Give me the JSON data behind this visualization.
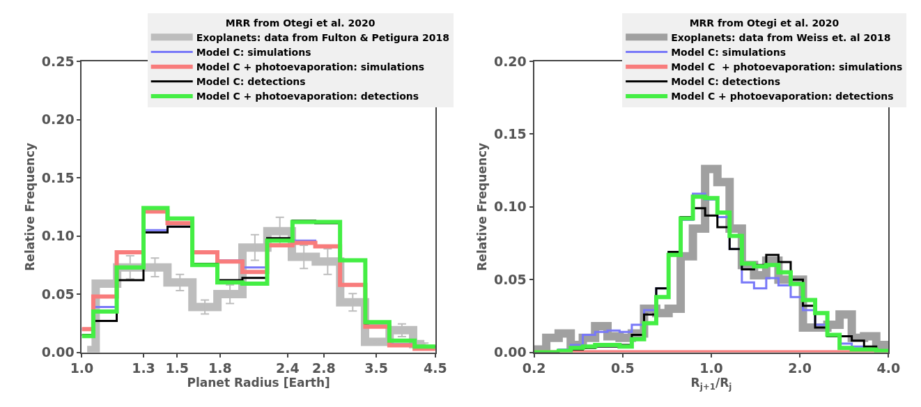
{
  "chart_data": [
    {
      "type": "histogram",
      "xlabel": "Planet Radius [Earth]",
      "ylabel": "Relative Frequency",
      "log": "x",
      "grid": false,
      "legend": "top right",
      "legend_title": "MRR from Otegi et al. 2020",
      "xlim": [
        1.0,
        4.5
      ],
      "xticks": [
        {
          "value": 1.0,
          "label": "1.0"
        },
        1.3,
        1.5,
        1.8,
        2.4,
        2.8,
        3.5,
        4.5
      ],
      "ylim": [
        0,
        0.25
      ],
      "yticks": [
        {
          "value": 0,
          "label": "0.00"
        },
        0.05,
        {
          "value": 0.1,
          "label": "0.10"
        },
        0.15,
        {
          "value": 0.2,
          "label": "0.20"
        },
        0.25
      ],
      "bins": [
        1.0,
        1.05,
        1.16,
        1.3,
        1.44,
        1.6,
        1.78,
        1.98,
        2.2,
        2.45,
        2.7,
        3.0,
        3.34,
        3.7,
        4.12,
        4.5
      ],
      "series": [
        {
          "name": "Exoplanets: data from Fulton & Petigura 2018",
          "type": "step",
          "marker": "circle",
          "color": "#bdbdbd",
          "x": [
            1.023,
            1.1,
            1.228,
            1.365,
            1.518,
            1.688,
            1.878,
            2.088,
            2.322,
            2.572,
            2.846,
            3.166,
            3.515,
            3.903,
            4.294
          ],
          "values": [
            0.002,
            0.059,
            0.073,
            0.073,
            0.06,
            0.039,
            0.05,
            0.09,
            0.104,
            0.082,
            0.078,
            0.043,
            0.009,
            0.019,
            0.007
          ],
          "errors": [
            null,
            null,
            0.01,
            0.008,
            0.007,
            0.006,
            0.008,
            0.011,
            0.012,
            0.01,
            0.011,
            0.0075,
            0.002,
            0.0055,
            0.001
          ]
        },
        {
          "name": "Model C: simulations",
          "color": "#7878f8",
          "values": [
            0.02,
            0.039,
            0.073,
            0.105,
            0.108,
            0.086,
            0.079,
            0.073,
            0.096,
            0.096,
            0.091,
            0.058,
            0.022,
            0.007,
            0.003
          ]
        },
        {
          "name": "Model C + photoevaporation: simulations",
          "color": "#f87c7c",
          "values": [
            0.02,
            0.048,
            0.086,
            0.121,
            0.111,
            0.086,
            0.078,
            0.069,
            0.092,
            0.094,
            0.091,
            0.058,
            0.022,
            0.006,
            0.003
          ]
        },
        {
          "name": "Model C: detections",
          "color": "#000000",
          "values": [
            0.015,
            0.027,
            0.062,
            0.103,
            0.108,
            0.076,
            0.062,
            0.064,
            0.098,
            0.113,
            0.111,
            0.079,
            0.025,
            0.01,
            0.005
          ]
        },
        {
          "name": "Model C + photoevaporation: detections",
          "color": "#44ee44",
          "values": [
            0.014,
            0.035,
            0.073,
            0.124,
            0.115,
            0.075,
            0.06,
            0.059,
            0.096,
            0.112,
            0.112,
            0.079,
            0.026,
            0.01,
            0.005
          ]
        }
      ]
    },
    {
      "type": "histogram",
      "xlabel": "R$_{j+1}$/R$_{j}$",
      "ylabel": "Relative Frequency",
      "log": "x",
      "grid": false,
      "legend": "top right",
      "legend_title": "MRR from Otegi et al. 2020",
      "xlim": [
        0.25,
        4.0
      ],
      "xticks": [
        {
          "value": 0.25,
          "label": "0.2"
        },
        0.5,
        {
          "value": 1.0,
          "label": "1.0"
        },
        {
          "value": 2.0,
          "label": "2.0"
        },
        {
          "value": 4.0,
          "label": "4.0"
        }
      ],
      "ylim": [
        0,
        0.2
      ],
      "yticks": [
        {
          "value": 0,
          "label": "0.00"
        },
        0.05,
        {
          "value": 0.1,
          "label": "0.10"
        },
        0.15,
        {
          "value": 0.2,
          "label": "0.20"
        }
      ],
      "bins": [
        0.25,
        0.275,
        0.303,
        0.333,
        0.366,
        0.403,
        0.444,
        0.488,
        0.537,
        0.591,
        0.65,
        0.716,
        0.787,
        0.866,
        0.953,
        1.049,
        1.154,
        1.27,
        1.397,
        1.537,
        1.691,
        1.861,
        2.048,
        2.253,
        2.479,
        2.728,
        3.001,
        3.303,
        3.634,
        4.0
      ],
      "series": [
        {
          "name": "Exoplanets: data from Weiss et. al 2018",
          "color": "#a0a0a0",
          "values": [
            0.002,
            0.01,
            0.013,
            0.005,
            0.01,
            0.018,
            0.011,
            0.01,
            0.013,
            0.03,
            0.027,
            0.03,
            0.066,
            0.085,
            0.126,
            0.117,
            0.085,
            0.06,
            0.053,
            0.063,
            0.05,
            0.05,
            0.017,
            0.017,
            0.019,
            0.026,
            0.01,
            0.011,
            0.005
          ]
        },
        {
          "name": "Model C: simulations",
          "color": "#7878f8",
          "values": [
            0.0,
            0.0,
            0.002,
            0.005,
            0.012,
            0.014,
            0.015,
            0.014,
            0.019,
            0.029,
            0.044,
            0.068,
            0.091,
            0.109,
            0.105,
            0.093,
            0.071,
            0.048,
            0.044,
            0.051,
            0.046,
            0.038,
            0.029,
            0.019,
            0.011,
            0.006,
            0.004,
            0.002,
            0.001
          ]
        },
        {
          "name": "Model C  + photoevaporation: simulations",
          "color": "#f87c7c",
          "values": [
            0,
            0,
            0,
            0,
            0,
            0,
            0,
            0,
            0,
            0,
            0,
            0,
            0,
            0,
            0,
            0,
            0,
            0,
            0,
            0,
            0,
            0,
            0,
            0,
            0,
            0,
            0,
            0,
            0
          ]
        },
        {
          "name": "Model C: detections",
          "color": "#000000",
          "values": [
            0.0,
            0.0,
            0.001,
            0.002,
            0.003,
            0.004,
            0.004,
            0.005,
            0.012,
            0.026,
            0.044,
            0.069,
            0.093,
            0.099,
            0.094,
            0.086,
            0.071,
            0.057,
            0.06,
            0.067,
            0.062,
            0.05,
            0.032,
            0.017,
            0.011,
            0.011,
            0.008,
            0.004,
            0.001
          ]
        },
        {
          "name": "Model C + photoevaporation: detections",
          "color": "#44ee44",
          "values": [
            0.0,
            0.0,
            0.001,
            0.003,
            0.004,
            0.005,
            0.005,
            0.004,
            0.009,
            0.02,
            0.038,
            0.067,
            0.092,
            0.107,
            0.106,
            0.096,
            0.08,
            0.061,
            0.059,
            0.06,
            0.055,
            0.047,
            0.036,
            0.027,
            0.012,
            0.003,
            0.002,
            0.002,
            0.001
          ]
        }
      ]
    }
  ]
}
